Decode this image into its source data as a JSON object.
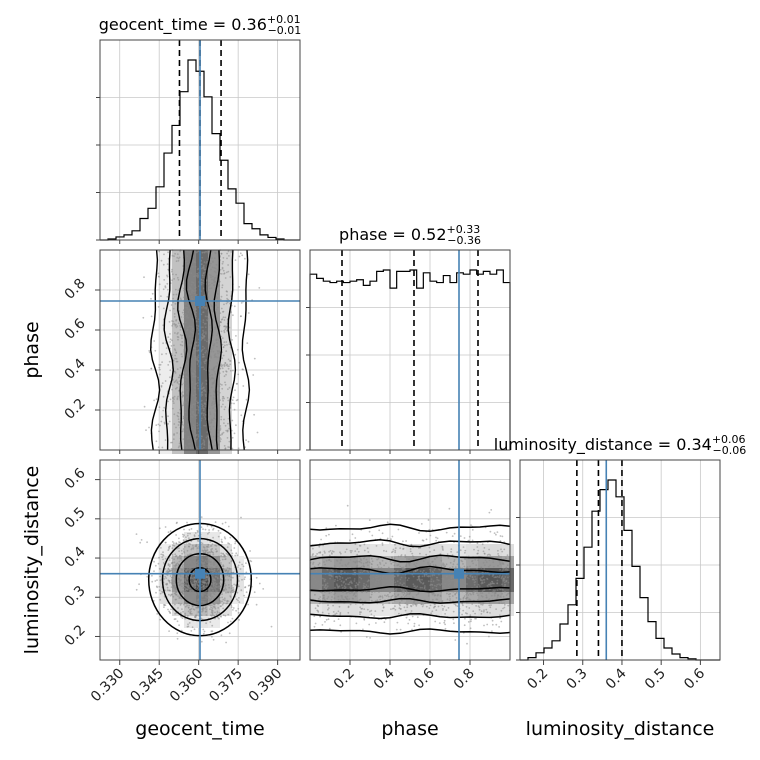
{
  "chart_data": {
    "type": "corner",
    "parameters": [
      "geocent_time",
      "phase",
      "luminosity_distance"
    ],
    "truths": {
      "geocent_time": 0.3605,
      "phase": 0.745,
      "luminosity_distance": 0.36
    },
    "truth_color": "#4682b4",
    "ranges": {
      "geocent_time": [
        0.3225,
        0.3985
      ],
      "phase": [
        0.0,
        1.0
      ],
      "luminosity_distance": [
        0.14,
        0.65
      ]
    },
    "ticks": {
      "geocent_time": [
        "0.330",
        "0.345",
        "0.360",
        "0.375",
        "0.390"
      ],
      "phase": [
        "0.2",
        "0.4",
        "0.6",
        "0.8"
      ],
      "luminosity_distance": [
        "0.2",
        "0.3",
        "0.4",
        "0.5",
        "0.6"
      ]
    },
    "titles": {
      "geocent_time": {
        "name": "geocent_time",
        "median": "0.36",
        "plus": "+0.01",
        "minus": "−0.01"
      },
      "phase": {
        "name": "phase",
        "median": "0.52",
        "plus": "+0.33",
        "minus": "−0.36"
      },
      "luminosity_distance": {
        "name": "luminosity_distance",
        "median": "0.34",
        "plus": "+0.06",
        "minus": "−0.06"
      }
    },
    "quantiles": {
      "geocent_time": [
        0.3527,
        0.3605,
        0.3685
      ],
      "phase": [
        0.16,
        0.52,
        0.84
      ],
      "luminosity_distance": [
        0.285,
        0.34,
        0.4
      ]
    },
    "histograms": {
      "geocent_time": {
        "range": [
          0.3225,
          0.3985
        ],
        "counts": [
          0,
          0.1,
          0.3,
          0.5,
          0.9,
          2.1,
          3.1,
          5.2,
          8.5,
          11.2,
          14.5,
          17.6,
          16.5,
          14.0,
          10.4,
          7.8,
          5.0,
          3.6,
          1.6,
          1.1,
          0.5,
          0.25,
          0.1,
          0,
          0
        ]
      },
      "phase": {
        "range": [
          0.0,
          1.0
        ],
        "counts": [
          12.6,
          12.3,
          12.1,
          12.0,
          12.1,
          12.0,
          12.1,
          12.2,
          11.8,
          12.1,
          12.8,
          12.9,
          11.6,
          12.8,
          12.8,
          12.9,
          11.6,
          12.7,
          12.1,
          12.0,
          12.5,
          12.0,
          12.7,
          12.6,
          12.9,
          12.6,
          12.8,
          12.6,
          12.9,
          12.0
        ]
      },
      "luminosity_distance": {
        "range": [
          0.14,
          0.65
        ],
        "counts": [
          0,
          0.1,
          0.3,
          0.5,
          0.8,
          1.5,
          2.3,
          3.4,
          4.7,
          6.2,
          7.1,
          7.5,
          6.8,
          5.4,
          3.9,
          2.6,
          1.6,
          0.9,
          0.5,
          0.25,
          0.1,
          0.05,
          0,
          0,
          0
        ]
      }
    }
  }
}
